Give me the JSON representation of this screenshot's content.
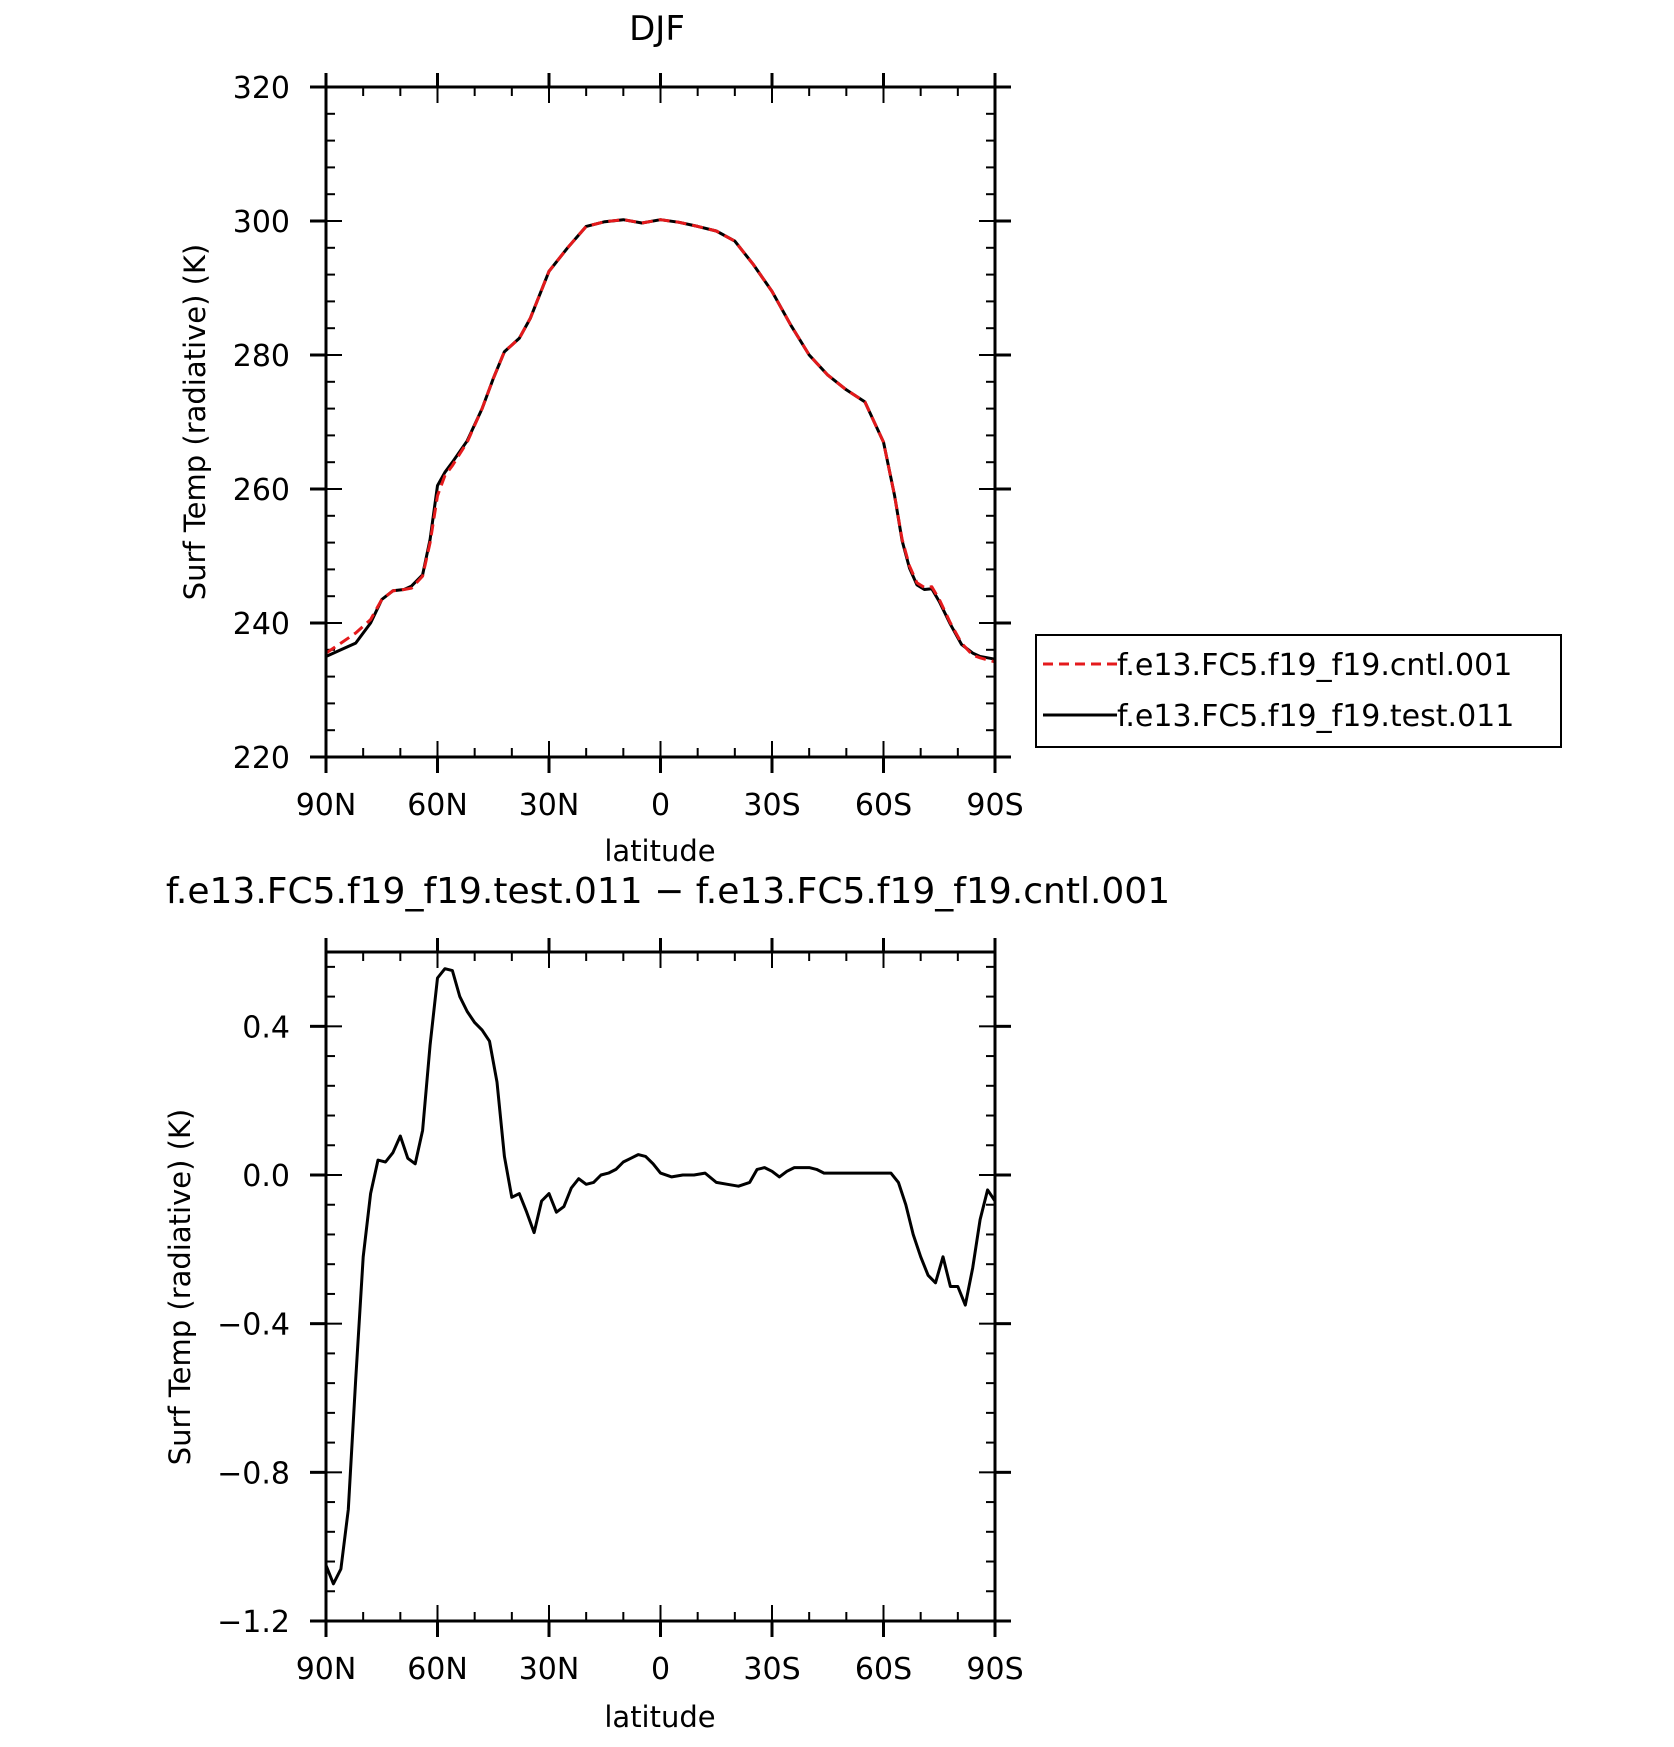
{
  "chart_data": [
    {
      "type": "line",
      "title": "DJF",
      "xlabel": "latitude",
      "ylabel": "Surf Temp (radiative) (K)",
      "xlim": [
        90,
        -90
      ],
      "ylim": [
        220,
        320
      ],
      "x_ticks": [
        90,
        60,
        30,
        0,
        -30,
        -60,
        -90
      ],
      "x_tick_labels": [
        "90N",
        "60N",
        "30N",
        "0",
        "30S",
        "60S",
        "90S"
      ],
      "y_ticks": [
        220,
        240,
        260,
        280,
        300,
        320
      ],
      "y_tick_labels": [
        "220",
        "240",
        "260",
        "280",
        "300",
        "320"
      ],
      "legend_position": "right",
      "series": [
        {
          "name": "f.e13.FC5.f19_f19.cntl.001",
          "color": "#e41a1c",
          "dash": "dashed",
          "x": [
            90,
            86,
            82,
            78,
            75,
            72,
            69,
            67,
            64,
            62,
            60,
            58,
            56,
            52,
            48,
            45,
            42,
            38,
            35,
            30,
            25,
            20,
            15,
            10,
            5,
            0,
            -5,
            -10,
            -15,
            -20,
            -25,
            -30,
            -35,
            -40,
            -45,
            -50,
            -55,
            -60,
            -63,
            -65,
            -67,
            -69,
            -71,
            -73,
            -75,
            -78,
            -81,
            -84,
            -86,
            -88,
            -90
          ],
          "y": [
            235.5,
            237,
            238.5,
            240.5,
            243.5,
            244.8,
            245,
            245.2,
            247,
            252,
            259,
            262,
            263.5,
            267,
            272,
            276.5,
            280.5,
            282.5,
            285.5,
            292.5,
            296,
            299.2,
            299.9,
            300.2,
            299.7,
            300.2,
            299.8,
            299.2,
            298.5,
            297,
            293.5,
            289.5,
            284.5,
            280,
            277,
            274.8,
            273,
            267,
            259,
            252.5,
            248.5,
            246,
            245.3,
            245.4,
            243.5,
            240,
            237,
            235.2,
            234.8,
            234.5,
            234.2
          ]
        },
        {
          "name": "f.e13.FC5.f19_f19.test.011",
          "color": "#000000",
          "dash": "solid",
          "x": [
            90,
            86,
            82,
            78,
            75,
            72,
            69,
            67,
            64,
            62,
            60,
            58,
            56,
            52,
            48,
            45,
            42,
            38,
            35,
            30,
            25,
            20,
            15,
            10,
            5,
            0,
            -5,
            -10,
            -15,
            -20,
            -25,
            -30,
            -35,
            -40,
            -45,
            -50,
            -55,
            -60,
            -63,
            -65,
            -67,
            -69,
            -71,
            -73,
            -75,
            -78,
            -81,
            -84,
            -86,
            -88,
            -90
          ],
          "y": [
            235,
            236,
            237,
            240,
            243.5,
            244.8,
            245,
            245.5,
            247.2,
            252.5,
            260.5,
            262.5,
            264,
            267.2,
            272,
            276.5,
            280.5,
            282.5,
            285.5,
            292.5,
            296,
            299.2,
            299.9,
            300.2,
            299.7,
            300.2,
            299.8,
            299.2,
            298.5,
            297,
            293.5,
            289.5,
            284.5,
            280,
            277,
            274.8,
            273,
            267,
            259,
            252.3,
            248.2,
            245.7,
            245,
            245.1,
            243.2,
            239.8,
            236.8,
            235.5,
            235,
            234.8,
            234.6
          ]
        }
      ]
    },
    {
      "type": "line",
      "title": "f.e13.FC5.f19_f19.test.011 − f.e13.FC5.f19_f19.cntl.001",
      "xlabel": "latitude",
      "ylabel": "Surf Temp (radiative) (K)",
      "xlim": [
        90,
        -90
      ],
      "ylim": [
        -1.2,
        0.6
      ],
      "x_ticks": [
        90,
        60,
        30,
        0,
        -30,
        -60,
        -90
      ],
      "x_tick_labels": [
        "90N",
        "60N",
        "30N",
        "0",
        "30S",
        "60S",
        "90S"
      ],
      "y_ticks": [
        -1.2,
        -0.8,
        -0.4,
        0.0,
        0.4
      ],
      "y_tick_labels": [
        "−1.2",
        "−0.8",
        "−0.4",
        "0.0",
        "0.4"
      ],
      "series": [
        {
          "color": "#000000",
          "dash": "solid",
          "x": [
            90,
            88,
            86,
            84,
            82,
            80,
            78,
            76,
            74,
            72,
            70,
            68,
            66,
            64,
            62,
            60,
            58,
            56,
            54,
            52,
            50,
            48,
            46,
            44,
            42,
            40,
            38,
            36,
            34,
            32,
            30,
            28,
            26,
            24,
            22,
            20,
            18,
            16,
            14,
            12,
            10,
            8,
            6,
            4,
            2,
            0,
            -3,
            -6,
            -9,
            -12,
            -15,
            -18,
            -21,
            -24,
            -26,
            -28,
            -30,
            -32,
            -34,
            -36,
            -38,
            -40,
            -42,
            -44,
            -46,
            -48,
            -50,
            -52,
            -54,
            -56,
            -58,
            -60,
            -62,
            -64,
            -66,
            -68,
            -70,
            -72,
            -74,
            -76,
            -78,
            -80,
            -82,
            -84,
            -86,
            -88,
            -90
          ],
          "y": [
            -1.05,
            -1.1,
            -1.06,
            -0.9,
            -0.55,
            -0.22,
            -0.05,
            0.04,
            0.035,
            0.06,
            0.105,
            0.045,
            0.03,
            0.12,
            0.35,
            0.53,
            0.555,
            0.55,
            0.48,
            0.44,
            0.41,
            0.39,
            0.36,
            0.25,
            0.05,
            -0.06,
            -0.05,
            -0.1,
            -0.155,
            -0.07,
            -0.05,
            -0.1,
            -0.085,
            -0.035,
            -0.01,
            -0.025,
            -0.02,
            0.0,
            0.005,
            0.015,
            0.035,
            0.045,
            0.055,
            0.05,
            0.03,
            0.005,
            -0.005,
            0.0,
            0.0,
            0.005,
            -0.02,
            -0.025,
            -0.03,
            -0.02,
            0.015,
            0.02,
            0.01,
            -0.005,
            0.01,
            0.02,
            0.02,
            0.02,
            0.015,
            0.005,
            0.005,
            0.005,
            0.005,
            0.005,
            0.005,
            0.005,
            0.005,
            0.005,
            0.005,
            -0.02,
            -0.08,
            -0.16,
            -0.22,
            -0.27,
            -0.29,
            -0.22,
            -0.3,
            -0.3,
            -0.35,
            -0.25,
            -0.12,
            -0.04,
            -0.07
          ]
        }
      ]
    }
  ]
}
